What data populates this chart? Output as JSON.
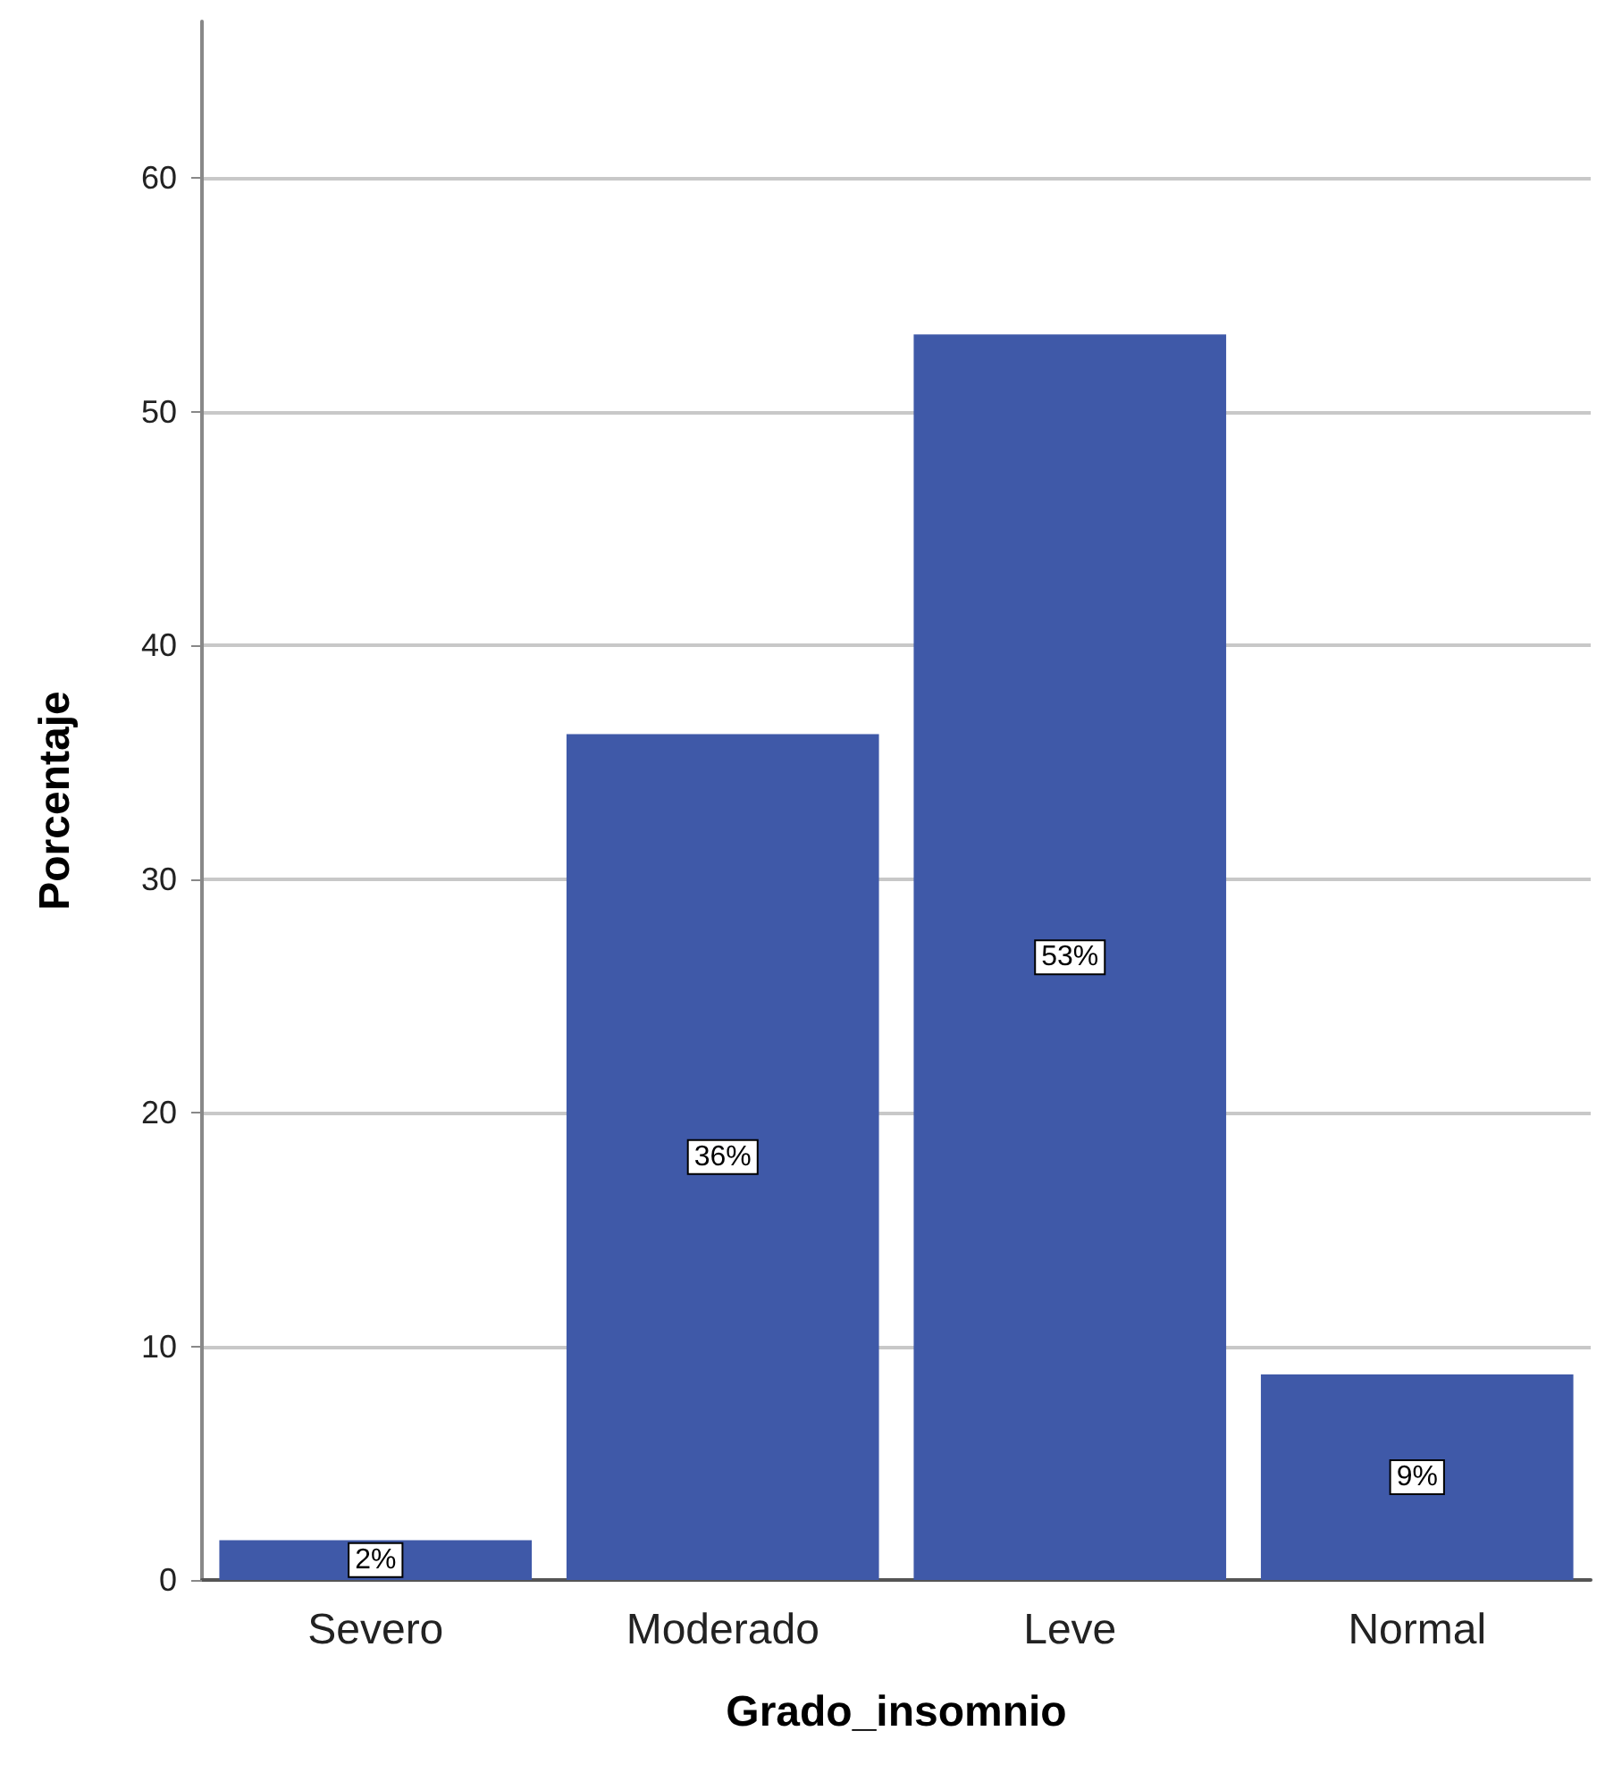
{
  "chart_data": {
    "type": "bar",
    "xlabel": "Grado_insomnio",
    "ylabel": "Porcentaje",
    "categories": [
      "Severo",
      "Moderado",
      "Leve",
      "Normal"
    ],
    "values": [
      1.7,
      36.2,
      53.3,
      8.8
    ],
    "value_labels": [
      "2%",
      "36%",
      "53%",
      "9%"
    ],
    "color": "#3f59a8",
    "ylim": [
      0,
      66.7
    ],
    "yticks": [
      0,
      10,
      20,
      30,
      40,
      50,
      60
    ],
    "grid": "y"
  }
}
